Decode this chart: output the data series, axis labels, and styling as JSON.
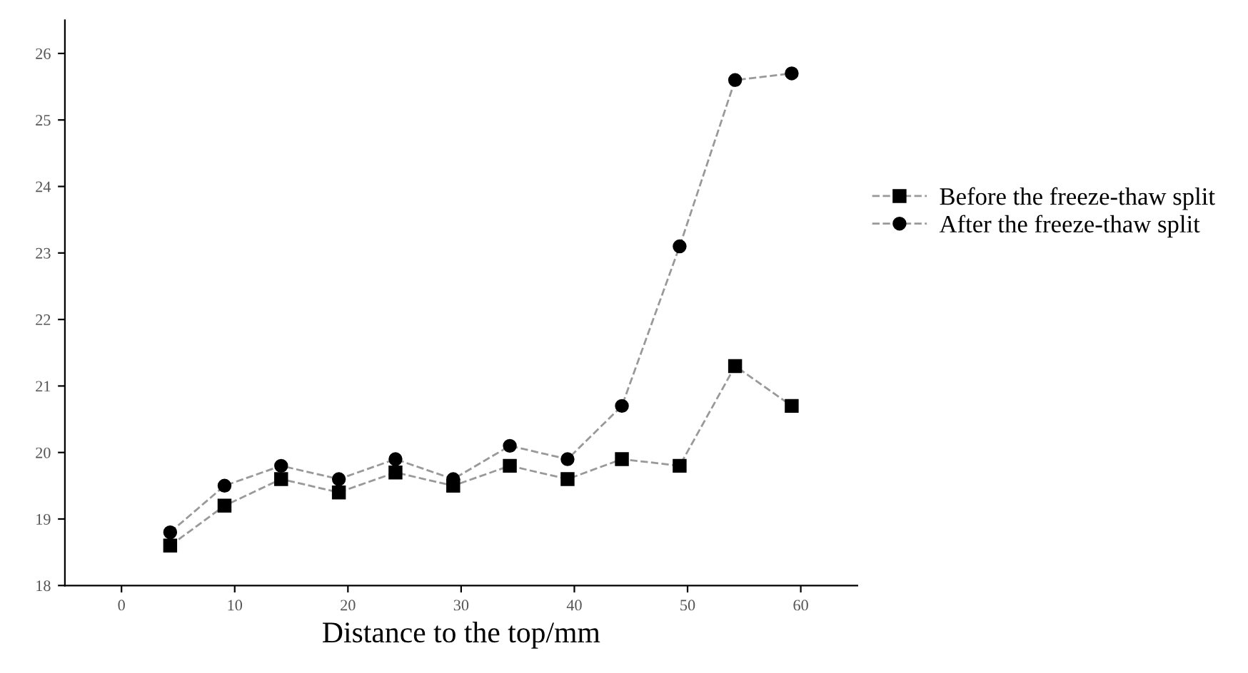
{
  "chart_data": {
    "type": "line",
    "xlabel": "Distance to the top/mm",
    "x": [
      4.3,
      9.1,
      14.1,
      19.2,
      24.2,
      29.3,
      34.3,
      39.4,
      44.2,
      49.3,
      54.2,
      59.2
    ],
    "series": [
      {
        "name": "Before the freeze-thaw split",
        "color": "#000000",
        "marker": "square",
        "values": [
          18.6,
          19.2,
          19.6,
          19.4,
          19.7,
          19.5,
          19.8,
          19.6,
          19.9,
          19.8,
          21.3,
          20.7
        ]
      },
      {
        "name": "After the freeze-thaw split",
        "color": "#000000",
        "marker": "circle",
        "values": [
          18.8,
          19.5,
          19.8,
          19.6,
          19.9,
          19.6,
          20.1,
          19.9,
          20.7,
          23.1,
          25.6,
          25.7
        ]
      }
    ],
    "line_style": "dashed",
    "xlim": [
      -5,
      65
    ],
    "ylim": [
      18,
      26.5
    ],
    "xticks": [
      0,
      10,
      20,
      30,
      40,
      50,
      60
    ],
    "yticks": [
      18,
      19,
      20,
      21,
      22,
      23,
      24,
      25,
      26
    ],
    "grid": false,
    "legend": "right"
  }
}
